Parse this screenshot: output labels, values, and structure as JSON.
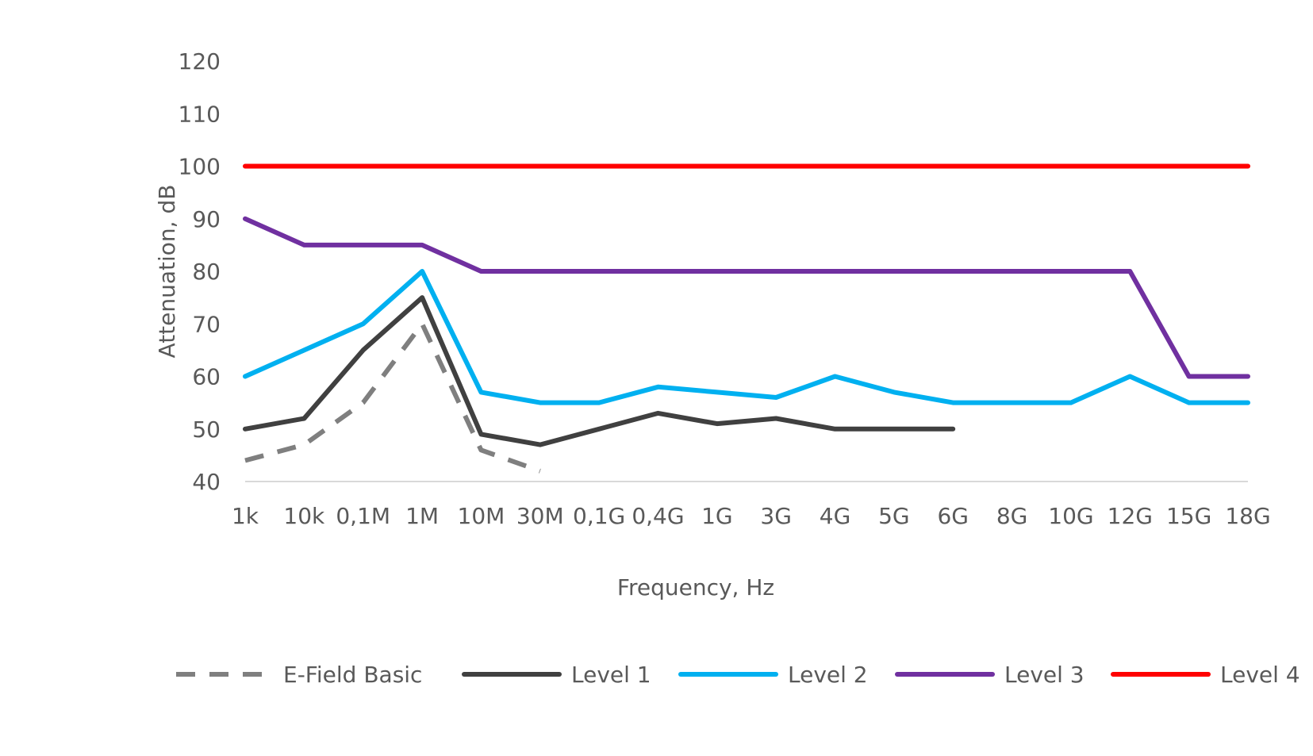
{
  "chart_data": {
    "type": "line",
    "title": "",
    "xlabel": "Frequency, Hz",
    "ylabel": "Attenuation, dB",
    "ylim": [
      40,
      120
    ],
    "yticks": [
      40,
      50,
      60,
      70,
      80,
      90,
      100,
      110,
      120
    ],
    "grid": false,
    "legend_position": "bottom",
    "categories": [
      "1k",
      "10k",
      "0,1M",
      "1M",
      "10M",
      "30M",
      "0,1G",
      "0,4G",
      "1G",
      "3G",
      "4G",
      "5G",
      "6G",
      "8G",
      "10G",
      "12G",
      "15G",
      "18G"
    ],
    "series": [
      {
        "name": "E-Field Basic",
        "color": "#7f7f7f",
        "dash": "dashed",
        "values": [
          44,
          47,
          55,
          70,
          46,
          42,
          null,
          null,
          null,
          null,
          null,
          null,
          null,
          null,
          null,
          null,
          null,
          null
        ]
      },
      {
        "name": "Level 1",
        "color": "#404040",
        "dash": "solid",
        "values": [
          50,
          52,
          65,
          75,
          49,
          47,
          50,
          53,
          51,
          52,
          50,
          50,
          50,
          null,
          null,
          null,
          null,
          null
        ]
      },
      {
        "name": "Level 2",
        "color": "#00b0f0",
        "dash": "solid",
        "values": [
          60,
          65,
          70,
          80,
          57,
          55,
          55,
          58,
          57,
          56,
          60,
          57,
          55,
          55,
          55,
          60,
          55,
          55
        ]
      },
      {
        "name": "Level 3",
        "color": "#7030a0",
        "dash": "solid",
        "values": [
          90,
          85,
          85,
          85,
          80,
          80,
          80,
          80,
          80,
          80,
          80,
          80,
          80,
          80,
          80,
          80,
          60,
          60
        ]
      },
      {
        "name": "Level 4",
        "color": "#ff0000",
        "dash": "solid",
        "values": [
          100,
          100,
          100,
          100,
          100,
          100,
          100,
          100,
          100,
          100,
          100,
          100,
          100,
          100,
          100,
          100,
          100,
          100
        ]
      }
    ]
  }
}
